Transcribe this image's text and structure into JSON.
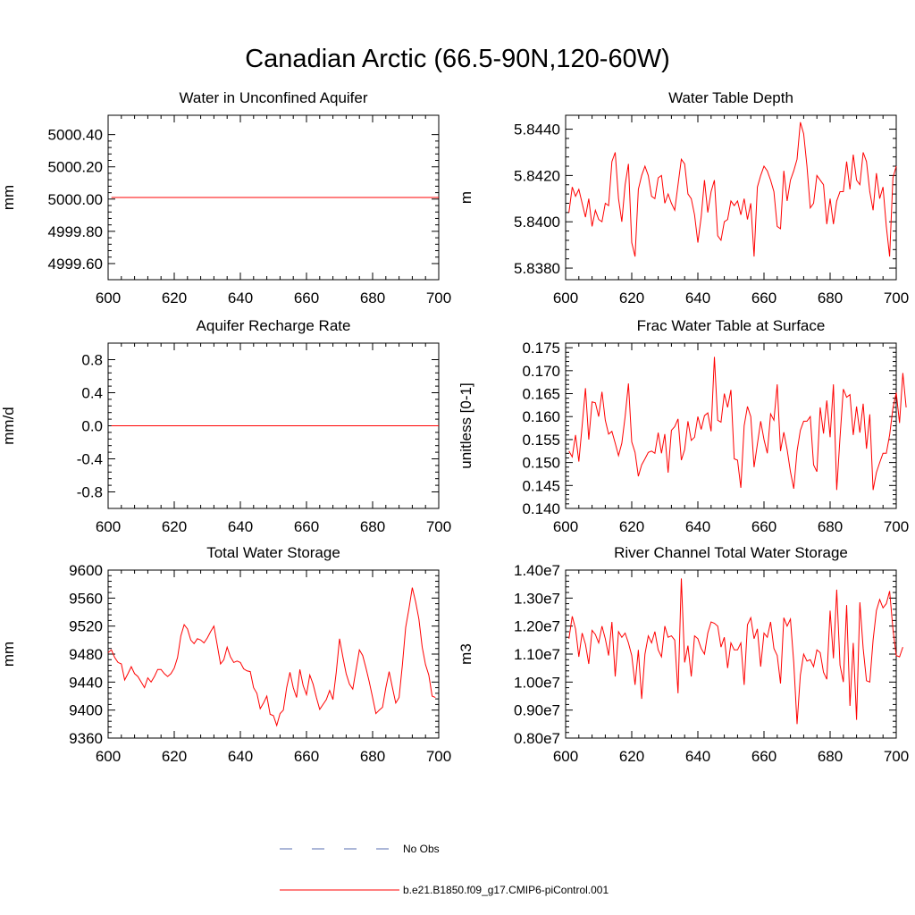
{
  "title": "Canadian Arctic (66.5-90N,120-60W)",
  "colors": {
    "model": "#ff0000",
    "obs": "#5a6fb0",
    "axis": "#000000",
    "background": "#ffffff"
  },
  "legend": {
    "obs_label": "No Obs",
    "model_label": "b.e21.B1850.f09_g17.CMIP6-piControl.001"
  },
  "chart_data": [
    {
      "id": "p1",
      "type": "line",
      "title": "Water in Unconfined Aquifer",
      "ylabel": "mm",
      "xlabel": "",
      "xlim": [
        600,
        700
      ],
      "ylim": [
        4999.5,
        5000.52
      ],
      "xticks": [
        600,
        620,
        640,
        660,
        680,
        700
      ],
      "yticks": [
        4999.6,
        4999.8,
        5000.0,
        5000.2,
        5000.4
      ],
      "ytick_labels": [
        "4999.60",
        "4999.80",
        "5000.00",
        "5000.20",
        "5000.40"
      ],
      "series": [
        {
          "x_start": 601,
          "x_step": 1,
          "values": [
            5000.01,
            5000.01
          ]
        }
      ],
      "constant": true
    },
    {
      "id": "p2",
      "type": "line",
      "title": "Water Table Depth",
      "ylabel": "m",
      "xlabel": "",
      "xlim": [
        600,
        700
      ],
      "ylim": [
        5.8375,
        5.8446
      ],
      "xticks": [
        600,
        620,
        640,
        660,
        680,
        700
      ],
      "yticks": [
        5.838,
        5.84,
        5.842,
        5.844
      ],
      "ytick_labels": [
        "5.8380",
        "5.8400",
        "5.8420",
        "5.8440"
      ],
      "series": [
        {
          "x_start": 601,
          "x_step": 1,
          "values": [
            5.8404,
            5.8415,
            5.8411,
            5.8414,
            5.8408,
            5.8402,
            5.841,
            5.8398,
            5.8405,
            5.8401,
            5.84,
            5.8408,
            5.8407,
            5.8426,
            5.843,
            5.841,
            5.84,
            5.8416,
            5.8425,
            5.8391,
            5.8385,
            5.8414,
            5.842,
            5.8424,
            5.842,
            5.8411,
            5.841,
            5.8419,
            5.842,
            5.8408,
            5.8412,
            5.8408,
            5.8405,
            5.8416,
            5.8427,
            5.8425,
            5.8412,
            5.841,
            5.8403,
            5.8391,
            5.8402,
            5.8418,
            5.8404,
            5.8413,
            5.8418,
            5.8394,
            5.8392,
            5.84,
            5.8401,
            5.8409,
            5.8407,
            5.8409,
            5.8403,
            5.841,
            5.8401,
            5.8408,
            5.8385,
            5.8415,
            5.842,
            5.8424,
            5.8422,
            5.8418,
            5.8413,
            5.8398,
            5.8397,
            5.8422,
            5.8409,
            5.8418,
            5.8422,
            5.8427,
            5.8443,
            5.8438,
            5.8424,
            5.8406,
            5.8408,
            5.842,
            5.8418,
            5.8416,
            5.8399,
            5.841,
            5.8399,
            5.8409,
            5.8413,
            5.8413,
            5.8426,
            5.8414,
            5.8429,
            5.8418,
            5.8416,
            5.843,
            5.8426,
            5.8413,
            5.8405,
            5.8421,
            5.841,
            5.8415,
            5.8398,
            5.8385,
            5.8419,
            5.8424
          ]
        }
      ]
    },
    {
      "id": "p3",
      "type": "line",
      "title": "Aquifer Recharge Rate",
      "ylabel": "mm/d",
      "xlabel": "",
      "xlim": [
        600,
        700
      ],
      "ylim": [
        -1.0,
        1.0
      ],
      "xticks": [
        600,
        620,
        640,
        660,
        680,
        700
      ],
      "yticks": [
        -0.8,
        -0.4,
        0.0,
        0.4,
        0.8
      ],
      "ytick_labels": [
        "-0.8",
        "-0.4",
        "0.0",
        "0.4",
        "0.8"
      ],
      "series": [
        {
          "x_start": 601,
          "x_step": 1,
          "values": [
            0.0,
            0.0
          ]
        }
      ],
      "constant": true
    },
    {
      "id": "p4",
      "type": "line",
      "title": "Frac Water Table at Surface",
      "ylabel": "unitless [0-1]",
      "xlabel": "",
      "xlim": [
        600,
        700
      ],
      "ylim": [
        0.14,
        0.176
      ],
      "xticks": [
        600,
        620,
        640,
        660,
        680,
        700
      ],
      "yticks": [
        0.14,
        0.145,
        0.15,
        0.155,
        0.16,
        0.165,
        0.17,
        0.175
      ],
      "ytick_labels": [
        "0.140",
        "0.145",
        "0.150",
        "0.155",
        "0.160",
        "0.165",
        "0.170",
        "0.175"
      ],
      "series": [
        {
          "x_start": 601,
          "x_step": 1,
          "values": [
            0.1525,
            0.1512,
            0.156,
            0.1502,
            0.158,
            0.1662,
            0.155,
            0.1632,
            0.163,
            0.16,
            0.1654,
            0.1592,
            0.1562,
            0.1568,
            0.1542,
            0.1515,
            0.1542,
            0.16,
            0.1672,
            0.1545,
            0.1522,
            0.147,
            0.1495,
            0.1508,
            0.1522,
            0.1525,
            0.152,
            0.1565,
            0.152,
            0.1562,
            0.1478,
            0.157,
            0.1578,
            0.1595,
            0.1505,
            0.1528,
            0.159,
            0.1548,
            0.1555,
            0.16,
            0.1572,
            0.1602,
            0.1608,
            0.1568,
            0.173,
            0.1592,
            0.1588,
            0.165,
            0.162,
            0.1658,
            0.1508,
            0.1505,
            0.1445,
            0.158,
            0.1622,
            0.16,
            0.149,
            0.154,
            0.159,
            0.155,
            0.152,
            0.1606,
            0.1592,
            0.167,
            0.1525,
            0.1566,
            0.1528,
            0.148,
            0.1443,
            0.1525,
            0.157,
            0.159,
            0.159,
            0.16,
            0.1495,
            0.148,
            0.162,
            0.1563,
            0.1635,
            0.1555,
            0.167,
            0.144,
            0.1555,
            0.166,
            0.1642,
            0.1648,
            0.156,
            0.1622,
            0.1565,
            0.1628,
            0.153,
            0.1605,
            0.144,
            0.1478,
            0.15,
            0.152,
            0.152,
            0.156,
            0.1618,
            0.1652,
            0.1586,
            0.1695,
            0.162
          ]
        }
      ]
    },
    {
      "id": "p5",
      "type": "line",
      "title": "Total Water Storage",
      "ylabel": "mm",
      "xlabel": "",
      "xlim": [
        600,
        700
      ],
      "ylim": [
        9360,
        9600
      ],
      "xticks": [
        600,
        620,
        640,
        660,
        680,
        700
      ],
      "yticks": [
        9360,
        9400,
        9440,
        9480,
        9520,
        9560,
        9600
      ],
      "ytick_labels": [
        "9360",
        "9400",
        "9440",
        "9480",
        "9520",
        "9560",
        "9600"
      ],
      "series": [
        {
          "x_start": 600,
          "x_step": 1,
          "values": [
            9482,
            9486,
            9475,
            9468,
            9466,
            9443,
            9452,
            9462,
            9452,
            9448,
            9440,
            9432,
            9446,
            9440,
            9448,
            9458,
            9458,
            9452,
            9448,
            9452,
            9460,
            9475,
            9506,
            9522,
            9516,
            9500,
            9495,
            9502,
            9500,
            9496,
            9503,
            9512,
            9520,
            9493,
            9466,
            9472,
            9490,
            9476,
            9468,
            9470,
            9468,
            9459,
            9456,
            9455,
            9432,
            9424,
            9402,
            9410,
            9420,
            9394,
            9392,
            9378,
            9395,
            9400,
            9432,
            9454,
            9432,
            9418,
            9458,
            9435,
            9422,
            9450,
            9437,
            9418,
            9401,
            9408,
            9415,
            9428,
            9415,
            9454,
            9502,
            9476,
            9452,
            9437,
            9430,
            9458,
            9486,
            9478,
            9460,
            9440,
            9418,
            9395,
            9400,
            9404,
            9432,
            9455,
            9432,
            9410,
            9418,
            9464,
            9518,
            9545,
            9575,
            9555,
            9530,
            9490,
            9465,
            9450,
            9420,
            9418
          ]
        }
      ]
    },
    {
      "id": "p6",
      "type": "line",
      "title": "River Channel Total Water Storage",
      "ylabel": "m3",
      "xlabel": "",
      "xlim": [
        600,
        700
      ],
      "ylim": [
        8000000,
        14000000
      ],
      "xticks": [
        600,
        620,
        640,
        660,
        680,
        700
      ],
      "yticks": [
        8000000,
        9000000,
        10000000,
        11000000,
        12000000,
        13000000,
        14000000
      ],
      "ytick_labels": [
        "0.80e7",
        "0.90e7",
        "1.00e7",
        "1.10e7",
        "1.20e7",
        "1.30e7",
        "1.40e7"
      ],
      "series": [
        {
          "x_start": 601,
          "x_step": 1,
          "values": [
            11550000,
            12350000,
            11900000,
            10900000,
            11750000,
            11350000,
            10650000,
            11850000,
            11700000,
            11400000,
            12000000,
            11550000,
            10950000,
            12150000,
            10200000,
            11800000,
            11600000,
            11750000,
            11400000,
            10950000,
            9900000,
            11150000,
            9400000,
            11000000,
            11650000,
            11400000,
            11800000,
            11150000,
            10900000,
            12000000,
            11600000,
            11650000,
            11500000,
            9600000,
            13700000,
            10700000,
            11300000,
            10200000,
            11650000,
            11550000,
            11200000,
            11000000,
            11750000,
            12150000,
            12100000,
            12000000,
            11250000,
            11600000,
            10500000,
            11400000,
            11150000,
            11150000,
            11400000,
            9900000,
            12050000,
            12300000,
            11550000,
            11900000,
            10550000,
            11750000,
            11600000,
            12150000,
            11200000,
            10950000,
            9950000,
            12300000,
            12000000,
            12250000,
            10700000,
            8500000,
            10250000,
            11000000,
            10750000,
            10800000,
            10550000,
            11150000,
            11050000,
            10350000,
            10100000,
            12550000,
            10850000,
            13300000,
            10600000,
            10000000,
            12750000,
            9150000,
            11400000,
            8650000,
            12850000,
            11200000,
            10050000,
            10000000,
            11500000,
            12550000,
            12950000,
            12650000,
            12800000,
            13250000,
            11900000,
            10950000,
            10900000,
            11250000
          ]
        }
      ]
    }
  ]
}
